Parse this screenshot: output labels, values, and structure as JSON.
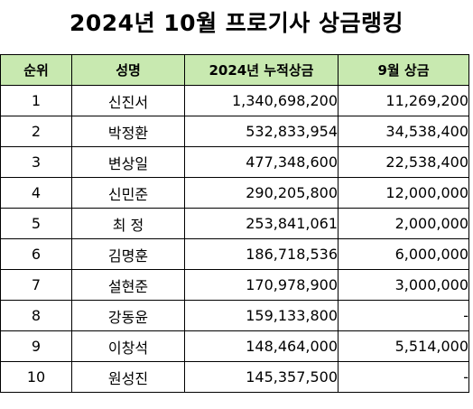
{
  "title": "2024년 10월 프로기사 상금랭킹",
  "headers": {
    "rank": "순위",
    "name": "성명",
    "total": "2024년 누적상금",
    "september": "9월 상금"
  },
  "rows": [
    {
      "rank": "1",
      "name": "신진서",
      "total": "1,340,698,200",
      "september": "11,269,200"
    },
    {
      "rank": "2",
      "name": "박정환",
      "total": "532,833,954",
      "september": "34,538,400"
    },
    {
      "rank": "3",
      "name": "변상일",
      "total": "477,348,600",
      "september": "22,538,400"
    },
    {
      "rank": "4",
      "name": "신민준",
      "total": "290,205,800",
      "september": "12,000,000"
    },
    {
      "rank": "5",
      "name": "최 정",
      "total": "253,841,061",
      "september": "2,000,000"
    },
    {
      "rank": "6",
      "name": "김명훈",
      "total": "186,718,536",
      "september": "6,000,000"
    },
    {
      "rank": "7",
      "name": "설현준",
      "total": "170,978,900",
      "september": "3,000,000"
    },
    {
      "rank": "8",
      "name": "강동윤",
      "total": "159,133,800",
      "september": "-"
    },
    {
      "rank": "9",
      "name": "이창석",
      "total": "148,464,000",
      "september": "5,514,000"
    },
    {
      "rank": "10",
      "name": "원성진",
      "total": "145,357,500",
      "september": "-"
    }
  ],
  "colors": {
    "header_background": "#c8e9b0",
    "border": "#000000"
  }
}
